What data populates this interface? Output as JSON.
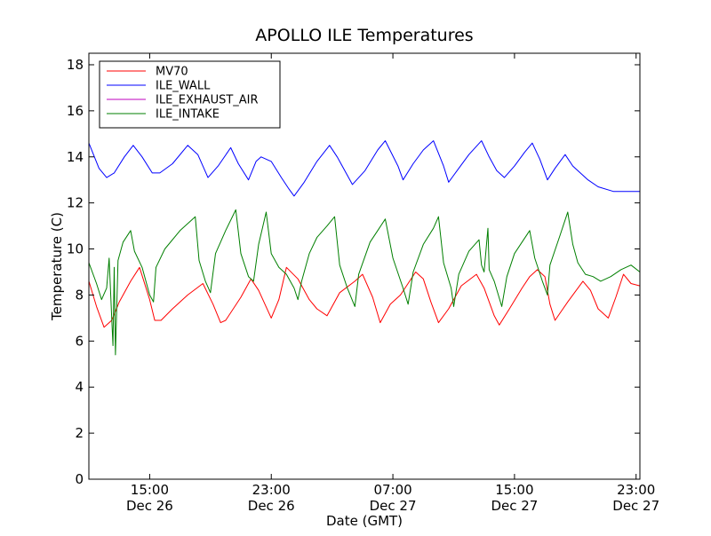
{
  "chart_data": {
    "type": "line",
    "title": "APOLLO ILE Temperatures",
    "xlabel": "Date (GMT)",
    "ylabel": "Temperature (C)",
    "ylim": [
      0,
      18.5
    ],
    "xlim": [
      "2011-12-26 11:00",
      "2011-12-27 23:15"
    ],
    "y_ticks": [
      "0",
      "2",
      "4",
      "6",
      "8",
      "10",
      "12",
      "14",
      "16",
      "18"
    ],
    "x_ticks": [
      {
        "time": "2011-12-26 15:00",
        "line1": "15:00",
        "line2": "Dec 26"
      },
      {
        "time": "2011-12-26 23:00",
        "line1": "23:00",
        "line2": "Dec 26"
      },
      {
        "time": "2011-12-27 07:00",
        "line1": "07:00",
        "line2": "Dec 27"
      },
      {
        "time": "2011-12-27 15:00",
        "line1": "15:00",
        "line2": "Dec 27"
      },
      {
        "time": "2011-12-27 23:00",
        "line1": "23:00",
        "line2": "Dec 27"
      }
    ],
    "grid": false,
    "legend_position": "top-left",
    "series": [
      {
        "name": "MV70",
        "color": "#ff0000",
        "points": [
          [
            "2011-12-26 11:00",
            8.6
          ],
          [
            "2011-12-26 11:30",
            7.5
          ],
          [
            "2011-12-26 12:00",
            6.6
          ],
          [
            "2011-12-26 12:30",
            6.9
          ],
          [
            "2011-12-26 13:00",
            7.7
          ],
          [
            "2011-12-26 13:45",
            8.6
          ],
          [
            "2011-12-26 14:20",
            9.2
          ],
          [
            "2011-12-26 15:00",
            7.8
          ],
          [
            "2011-12-26 15:20",
            6.9
          ],
          [
            "2011-12-26 15:45",
            6.9
          ],
          [
            "2011-12-26 16:30",
            7.4
          ],
          [
            "2011-12-26 17:30",
            8.0
          ],
          [
            "2011-12-26 18:30",
            8.5
          ],
          [
            "2011-12-26 19:10",
            7.6
          ],
          [
            "2011-12-26 19:40",
            6.8
          ],
          [
            "2011-12-26 20:00",
            6.9
          ],
          [
            "2011-12-26 21:00",
            7.9
          ],
          [
            "2011-12-26 21:40",
            8.7
          ],
          [
            "2011-12-26 22:10",
            8.2
          ],
          [
            "2011-12-26 23:00",
            7.0
          ],
          [
            "2011-12-26 23:30",
            7.8
          ],
          [
            "2011-12-27 00:00",
            9.2
          ],
          [
            "2011-12-27 00:45",
            8.7
          ],
          [
            "2011-12-27 01:30",
            7.8
          ],
          [
            "2011-12-27 02:00",
            7.4
          ],
          [
            "2011-12-27 02:40",
            7.1
          ],
          [
            "2011-12-27 03:30",
            8.1
          ],
          [
            "2011-12-27 04:30",
            8.6
          ],
          [
            "2011-12-27 05:00",
            8.9
          ],
          [
            "2011-12-27 05:40",
            7.9
          ],
          [
            "2011-12-27 06:10",
            6.8
          ],
          [
            "2011-12-27 06:50",
            7.6
          ],
          [
            "2011-12-27 07:30",
            8.0
          ],
          [
            "2011-12-27 08:30",
            9.0
          ],
          [
            "2011-12-27 09:00",
            8.7
          ],
          [
            "2011-12-27 09:30",
            7.7
          ],
          [
            "2011-12-27 10:00",
            6.8
          ],
          [
            "2011-12-27 10:40",
            7.4
          ],
          [
            "2011-12-27 11:30",
            8.4
          ],
          [
            "2011-12-27 12:30",
            8.9
          ],
          [
            "2011-12-27 13:00",
            8.3
          ],
          [
            "2011-12-27 13:40",
            7.1
          ],
          [
            "2011-12-27 14:00",
            6.7
          ],
          [
            "2011-12-27 14:40",
            7.4
          ],
          [
            "2011-12-27 15:30",
            8.3
          ],
          [
            "2011-12-27 16:00",
            8.8
          ],
          [
            "2011-12-27 16:30",
            9.1
          ],
          [
            "2011-12-27 17:00",
            8.8
          ],
          [
            "2011-12-27 17:20",
            7.6
          ],
          [
            "2011-12-27 17:40",
            6.9
          ],
          [
            "2011-12-27 18:30",
            7.7
          ],
          [
            "2011-12-27 19:30",
            8.6
          ],
          [
            "2011-12-27 20:00",
            8.2
          ],
          [
            "2011-12-27 20:30",
            7.4
          ],
          [
            "2011-12-27 21:10",
            7.0
          ],
          [
            "2011-12-27 21:40",
            7.9
          ],
          [
            "2011-12-27 22:10",
            8.9
          ],
          [
            "2011-12-27 22:40",
            8.5
          ],
          [
            "2011-12-27 23:15",
            8.4
          ]
        ]
      },
      {
        "name": "ILE_WALL",
        "color": "#0000ff",
        "points": [
          [
            "2011-12-26 11:00",
            14.6
          ],
          [
            "2011-12-26 11:40",
            13.5
          ],
          [
            "2011-12-26 12:10",
            13.1
          ],
          [
            "2011-12-26 12:40",
            13.3
          ],
          [
            "2011-12-26 13:20",
            14.0
          ],
          [
            "2011-12-26 13:55",
            14.5
          ],
          [
            "2011-12-26 14:30",
            14.0
          ],
          [
            "2011-12-26 15:10",
            13.3
          ],
          [
            "2011-12-26 15:40",
            13.3
          ],
          [
            "2011-12-26 16:30",
            13.7
          ],
          [
            "2011-12-26 17:30",
            14.5
          ],
          [
            "2011-12-26 18:10",
            14.1
          ],
          [
            "2011-12-26 18:50",
            13.1
          ],
          [
            "2011-12-26 19:30",
            13.6
          ],
          [
            "2011-12-26 20:20",
            14.4
          ],
          [
            "2011-12-26 20:50",
            13.7
          ],
          [
            "2011-12-26 21:30",
            13.0
          ],
          [
            "2011-12-26 22:00",
            13.8
          ],
          [
            "2011-12-26 22:20",
            14.0
          ],
          [
            "2011-12-26 23:00",
            13.8
          ],
          [
            "2011-12-26 23:40",
            13.1
          ],
          [
            "2011-12-27 00:10",
            12.6
          ],
          [
            "2011-12-27 00:30",
            12.3
          ],
          [
            "2011-12-27 01:10",
            12.9
          ],
          [
            "2011-12-27 02:00",
            13.8
          ],
          [
            "2011-12-27 02:50",
            14.5
          ],
          [
            "2011-12-27 03:20",
            14.0
          ],
          [
            "2011-12-27 04:00",
            13.2
          ],
          [
            "2011-12-27 04:20",
            12.8
          ],
          [
            "2011-12-27 05:10",
            13.4
          ],
          [
            "2011-12-27 06:00",
            14.3
          ],
          [
            "2011-12-27 06:30",
            14.7
          ],
          [
            "2011-12-27 07:20",
            13.6
          ],
          [
            "2011-12-27 07:40",
            13.0
          ],
          [
            "2011-12-27 08:20",
            13.7
          ],
          [
            "2011-12-27 09:00",
            14.3
          ],
          [
            "2011-12-27 09:40",
            14.7
          ],
          [
            "2011-12-27 10:20",
            13.6
          ],
          [
            "2011-12-27 10:40",
            12.9
          ],
          [
            "2011-12-27 11:20",
            13.5
          ],
          [
            "2011-12-27 12:00",
            14.1
          ],
          [
            "2011-12-27 12:50",
            14.7
          ],
          [
            "2011-12-27 13:20",
            14.0
          ],
          [
            "2011-12-27 13:50",
            13.4
          ],
          [
            "2011-12-27 14:20",
            13.1
          ],
          [
            "2011-12-27 15:00",
            13.6
          ],
          [
            "2011-12-27 15:40",
            14.2
          ],
          [
            "2011-12-27 16:10",
            14.6
          ],
          [
            "2011-12-27 16:40",
            13.9
          ],
          [
            "2011-12-27 17:10",
            13.0
          ],
          [
            "2011-12-27 17:40",
            13.5
          ],
          [
            "2011-12-27 18:20",
            14.1
          ],
          [
            "2011-12-27 18:50",
            13.6
          ],
          [
            "2011-12-27 19:50",
            13.0
          ],
          [
            "2011-12-27 20:30",
            12.7
          ],
          [
            "2011-12-27 21:30",
            12.5
          ],
          [
            "2011-12-27 22:30",
            12.5
          ],
          [
            "2011-12-27 23:15",
            12.5
          ]
        ]
      },
      {
        "name": "ILE_EXHAUST_AIR",
        "color": "#bf00bf",
        "points": []
      },
      {
        "name": "ILE_INTAKE",
        "color": "#007f00",
        "points": [
          [
            "2011-12-26 11:00",
            9.4
          ],
          [
            "2011-12-26 11:30",
            8.5
          ],
          [
            "2011-12-26 11:50",
            7.8
          ],
          [
            "2011-12-26 12:10",
            8.3
          ],
          [
            "2011-12-26 12:20",
            9.6
          ],
          [
            "2011-12-26 12:30",
            7.0
          ],
          [
            "2011-12-26 12:35",
            5.8
          ],
          [
            "2011-12-26 12:40",
            9.2
          ],
          [
            "2011-12-26 12:45",
            5.4
          ],
          [
            "2011-12-26 12:55",
            9.5
          ],
          [
            "2011-12-26 13:15",
            10.3
          ],
          [
            "2011-12-26 13:45",
            10.8
          ],
          [
            "2011-12-26 14:00",
            9.9
          ],
          [
            "2011-12-26 14:30",
            9.2
          ],
          [
            "2011-12-26 15:00",
            8.0
          ],
          [
            "2011-12-26 15:15",
            7.7
          ],
          [
            "2011-12-26 15:25",
            9.2
          ],
          [
            "2011-12-26 16:00",
            10.0
          ],
          [
            "2011-12-26 17:00",
            10.8
          ],
          [
            "2011-12-26 18:00",
            11.4
          ],
          [
            "2011-12-26 18:15",
            9.5
          ],
          [
            "2011-12-26 18:40",
            8.6
          ],
          [
            "2011-12-26 19:00",
            8.1
          ],
          [
            "2011-12-26 19:20",
            9.8
          ],
          [
            "2011-12-26 20:00",
            10.8
          ],
          [
            "2011-12-26 20:40",
            11.7
          ],
          [
            "2011-12-26 21:00",
            9.8
          ],
          [
            "2011-12-26 21:30",
            8.8
          ],
          [
            "2011-12-26 21:50",
            8.6
          ],
          [
            "2011-12-26 22:10",
            10.2
          ],
          [
            "2011-12-26 22:40",
            11.6
          ],
          [
            "2011-12-26 23:00",
            9.8
          ],
          [
            "2011-12-26 23:30",
            9.2
          ],
          [
            "2011-12-27 00:00",
            8.9
          ],
          [
            "2011-12-27 00:30",
            8.3
          ],
          [
            "2011-12-27 00:45",
            7.8
          ],
          [
            "2011-12-27 01:00",
            8.6
          ],
          [
            "2011-12-27 01:30",
            9.8
          ],
          [
            "2011-12-27 02:00",
            10.5
          ],
          [
            "2011-12-27 02:40",
            11.0
          ],
          [
            "2011-12-27 03:10",
            11.4
          ],
          [
            "2011-12-27 03:30",
            9.3
          ],
          [
            "2011-12-27 04:00",
            8.3
          ],
          [
            "2011-12-27 04:30",
            7.5
          ],
          [
            "2011-12-27 04:45",
            8.9
          ],
          [
            "2011-12-27 05:30",
            10.3
          ],
          [
            "2011-12-27 06:00",
            10.8
          ],
          [
            "2011-12-27 06:30",
            11.3
          ],
          [
            "2011-12-27 07:00",
            9.6
          ],
          [
            "2011-12-27 07:40",
            8.3
          ],
          [
            "2011-12-27 08:00",
            7.6
          ],
          [
            "2011-12-27 08:20",
            9.0
          ],
          [
            "2011-12-27 09:00",
            10.2
          ],
          [
            "2011-12-27 09:40",
            10.9
          ],
          [
            "2011-12-27 10:00",
            11.4
          ],
          [
            "2011-12-27 10:20",
            9.4
          ],
          [
            "2011-12-27 10:50",
            8.3
          ],
          [
            "2011-12-27 11:00",
            7.5
          ],
          [
            "2011-12-27 11:20",
            8.9
          ],
          [
            "2011-12-27 12:00",
            9.9
          ],
          [
            "2011-12-27 12:40",
            10.4
          ],
          [
            "2011-12-27 12:50",
            9.3
          ],
          [
            "2011-12-27 13:00",
            9.0
          ],
          [
            "2011-12-27 13:15",
            10.9
          ],
          [
            "2011-12-27 13:20",
            9.1
          ],
          [
            "2011-12-27 13:40",
            8.6
          ],
          [
            "2011-12-27 14:10",
            7.5
          ],
          [
            "2011-12-27 14:30",
            8.8
          ],
          [
            "2011-12-27 15:00",
            9.8
          ],
          [
            "2011-12-27 15:30",
            10.3
          ],
          [
            "2011-12-27 16:00",
            10.8
          ],
          [
            "2011-12-27 16:20",
            9.6
          ],
          [
            "2011-12-27 16:50",
            8.6
          ],
          [
            "2011-12-27 17:10",
            8.0
          ],
          [
            "2011-12-27 17:20",
            9.3
          ],
          [
            "2011-12-27 18:00",
            10.6
          ],
          [
            "2011-12-27 18:30",
            11.6
          ],
          [
            "2011-12-27 18:50",
            10.2
          ],
          [
            "2011-12-27 19:10",
            9.4
          ],
          [
            "2011-12-27 19:40",
            8.9
          ],
          [
            "2011-12-27 20:10",
            8.8
          ],
          [
            "2011-12-27 20:40",
            8.6
          ],
          [
            "2011-12-27 21:20",
            8.8
          ],
          [
            "2011-12-27 22:00",
            9.1
          ],
          [
            "2011-12-27 22:40",
            9.3
          ],
          [
            "2011-12-27 23:15",
            9.0
          ]
        ]
      }
    ]
  }
}
